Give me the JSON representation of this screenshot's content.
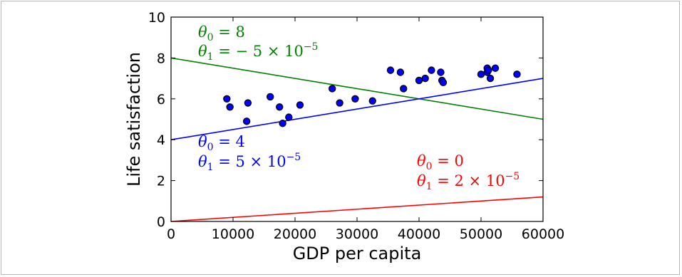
{
  "chart_data": {
    "type": "scatter",
    "xlabel": "GDP per capita",
    "ylabel": "Life satisfaction",
    "xlim": [
      0,
      60000
    ],
    "ylim": [
      0,
      10
    ],
    "x_ticks": [
      0,
      10000,
      20000,
      30000,
      40000,
      50000,
      60000
    ],
    "y_ticks": [
      0,
      2,
      4,
      6,
      8,
      10
    ],
    "grid": false,
    "points": {
      "color": "#0000ff",
      "edge_color": "#000000",
      "x": [
        9000,
        9500,
        12200,
        12400,
        16000,
        17500,
        18000,
        19000,
        20800,
        26000,
        27200,
        29700,
        32500,
        35400,
        37000,
        37500,
        40000,
        41000,
        42000,
        43500,
        43700,
        43900,
        50000,
        51000,
        51000,
        51200,
        51500,
        52300,
        55800
      ],
      "y": [
        6.0,
        5.6,
        4.9,
        5.8,
        6.1,
        5.6,
        4.8,
        5.1,
        5.7,
        6.5,
        5.8,
        6.0,
        5.9,
        7.4,
        7.3,
        6.5,
        6.9,
        7.0,
        7.4,
        7.3,
        6.9,
        6.8,
        7.2,
        7.5,
        7.3,
        7.4,
        7.0,
        7.5,
        7.2
      ]
    },
    "series": [
      {
        "type": "line",
        "color": "#008000",
        "theta0": 8,
        "theta1": -5e-05,
        "annotation": {
          "line1": {
            "sym": "θ",
            "sub": "0",
            "eq": " = 8"
          },
          "line2": {
            "sym": "θ",
            "sub": "1",
            "eq": " = − 5 × 10",
            "exp": "−5"
          }
        }
      },
      {
        "type": "line",
        "color": "#0000ff",
        "theta0": 4,
        "theta1": 5e-05,
        "annotation": {
          "line1": {
            "sym": "θ",
            "sub": "0",
            "eq": " = 4"
          },
          "line2": {
            "sym": "θ",
            "sub": "1",
            "eq": " = 5 × 10",
            "exp": "−5"
          }
        }
      },
      {
        "type": "line",
        "color": "#ff0000",
        "theta0": 0,
        "theta1": 2e-05,
        "annotation": {
          "line1": {
            "sym": "θ",
            "sub": "0",
            "eq": " = 0"
          },
          "line2": {
            "sym": "θ",
            "sub": "1",
            "eq": " = 2 × 10",
            "exp": "−5"
          }
        }
      }
    ]
  }
}
